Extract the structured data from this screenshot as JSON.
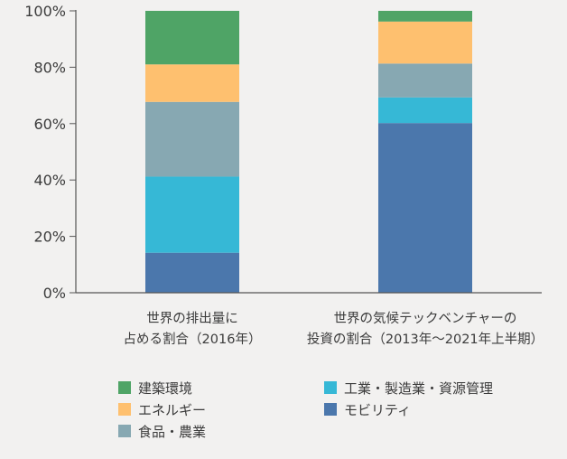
{
  "chart_data": {
    "type": "bar",
    "stacked": true,
    "ylim": [
      0,
      100
    ],
    "y_ticks": [
      "0%",
      "20%",
      "40%",
      "60%",
      "80%",
      "100%"
    ],
    "categories": [
      [
        "世界の排出量に",
        "占める割合（2016年）"
      ],
      [
        "世界の気候テックベンチャーの",
        "投資の割合（2013年〜2021年上半期）"
      ]
    ],
    "series": [
      {
        "name": "モビリティ",
        "color": "#4b77ac",
        "values": [
          14.2,
          60.2
        ]
      },
      {
        "name": "工業・製造業・資源管理",
        "color": "#36b8d6",
        "values": [
          27.0,
          9.1
        ]
      },
      {
        "name": "食品・農業",
        "color": "#87a8b2",
        "values": [
          26.5,
          12.0
        ]
      },
      {
        "name": "エネルギー",
        "color": "#fec06f",
        "values": [
          13.3,
          14.9
        ]
      },
      {
        "name": "建築環境",
        "color": "#4fa466",
        "values": [
          19.0,
          3.8
        ]
      }
    ],
    "legend": {
      "placement": "bottom",
      "rows": [
        [
          "建築環境",
          "工業・製造業・資源管理"
        ],
        [
          "エネルギー",
          "モビリティ"
        ],
        [
          "食品・農業"
        ]
      ]
    }
  }
}
